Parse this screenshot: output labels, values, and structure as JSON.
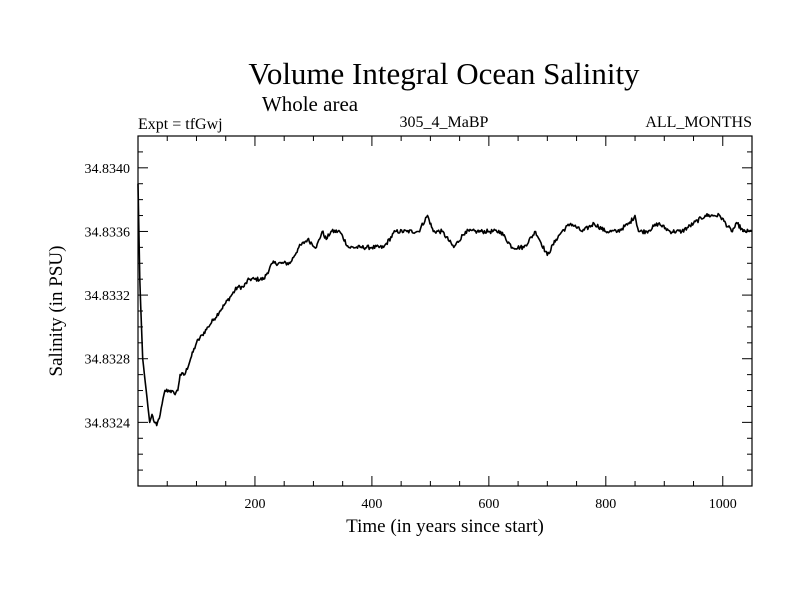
{
  "chart_data": {
    "type": "line",
    "title": "Volume Integral Ocean Salinity",
    "subtitle": "Whole area",
    "expt_label": "Expt = tfGwj",
    "run_label": "305_4_MaBP",
    "period_label": "ALL_MONTHS",
    "xlabel": "Time (in years since start)",
    "ylabel": "Salinity (in PSU)",
    "xlim": [
      0,
      1050
    ],
    "ylim": [
      34.832,
      34.8342
    ],
    "xticks": [
      200,
      400,
      600,
      800,
      1000
    ],
    "xtick_labels": [
      "200",
      "400",
      "600",
      "800",
      "1000"
    ],
    "yticks": [
      34.8324,
      34.8328,
      34.8332,
      34.8336,
      34.834
    ],
    "ytick_labels": [
      "34.8324",
      "34.8328",
      "34.8332",
      "34.8336",
      "34.8340"
    ],
    "grid": false,
    "series": [
      {
        "name": "Salinity",
        "color": "#000000",
        "x": [
          0,
          3,
          8,
          14,
          20,
          24,
          28,
          32,
          38,
          46,
          55,
          62,
          68,
          72,
          80,
          90,
          100,
          110,
          120,
          130,
          140,
          150,
          160,
          170,
          180,
          190,
          200,
          215,
          230,
          245,
          260,
          275,
          290,
          305,
          315,
          322,
          330,
          345,
          360,
          380,
          400,
          420,
          440,
          460,
          480,
          495,
          505,
          520,
          540,
          560,
          580,
          600,
          620,
          640,
          660,
          680,
          700,
          715,
          725,
          740,
          760,
          780,
          800,
          820,
          840,
          850,
          856,
          870,
          890,
          910,
          930,
          950,
          970,
          985,
          995,
          1005,
          1015,
          1025,
          1035,
          1045,
          1050
        ],
        "values": [
          34.8339,
          34.8333,
          34.8328,
          34.8326,
          34.8324,
          34.83245,
          34.8324,
          34.83238,
          34.83245,
          34.8326,
          34.8326,
          34.83258,
          34.8326,
          34.8327,
          34.8327,
          34.8328,
          34.8329,
          34.83295,
          34.833,
          34.83305,
          34.8331,
          34.83315,
          34.8332,
          34.83325,
          34.83325,
          34.8333,
          34.8333,
          34.8333,
          34.8334,
          34.8334,
          34.8334,
          34.8335,
          34.83355,
          34.8335,
          34.8336,
          34.83355,
          34.8336,
          34.8336,
          34.8335,
          34.8335,
          34.8335,
          34.8335,
          34.8336,
          34.8336,
          34.8336,
          34.8337,
          34.8336,
          34.8336,
          34.8335,
          34.8336,
          34.8336,
          34.8336,
          34.8336,
          34.8335,
          34.8335,
          34.8336,
          34.83345,
          34.83355,
          34.8336,
          34.83365,
          34.8336,
          34.83365,
          34.8336,
          34.8336,
          34.83365,
          34.8337,
          34.8336,
          34.8336,
          34.83365,
          34.8336,
          34.8336,
          34.83365,
          34.8337,
          34.8337,
          34.8337,
          34.83365,
          34.8336,
          34.83365,
          34.8336,
          34.8336,
          34.8336
        ]
      }
    ]
  }
}
